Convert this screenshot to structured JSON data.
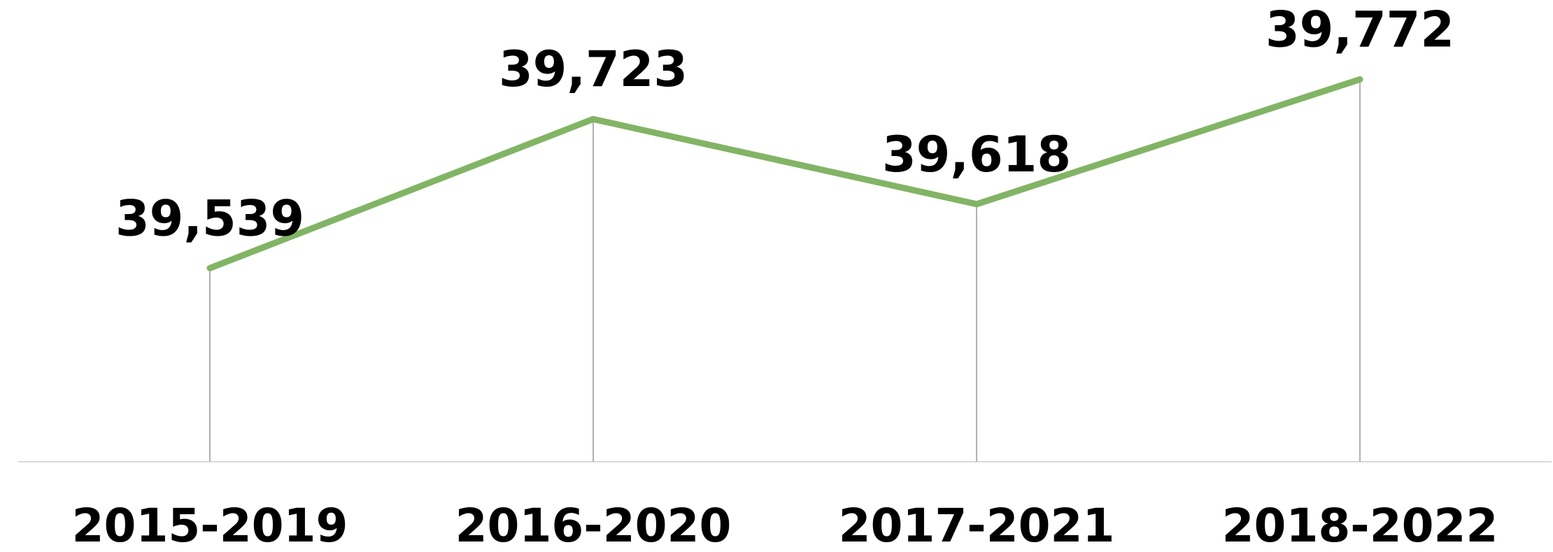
{
  "chart_data": {
    "type": "line",
    "categories": [
      "2015-2019",
      "2016-2020",
      "2017-2021",
      "2018-2022"
    ],
    "series": [
      {
        "color": "#82b465",
        "values": [
          39539,
          39723,
          39618,
          39772
        ],
        "value_labels": [
          "39,539",
          "39,723",
          "39,618",
          "39,772"
        ]
      }
    ],
    "ylim": [
      39300,
      39870
    ]
  }
}
